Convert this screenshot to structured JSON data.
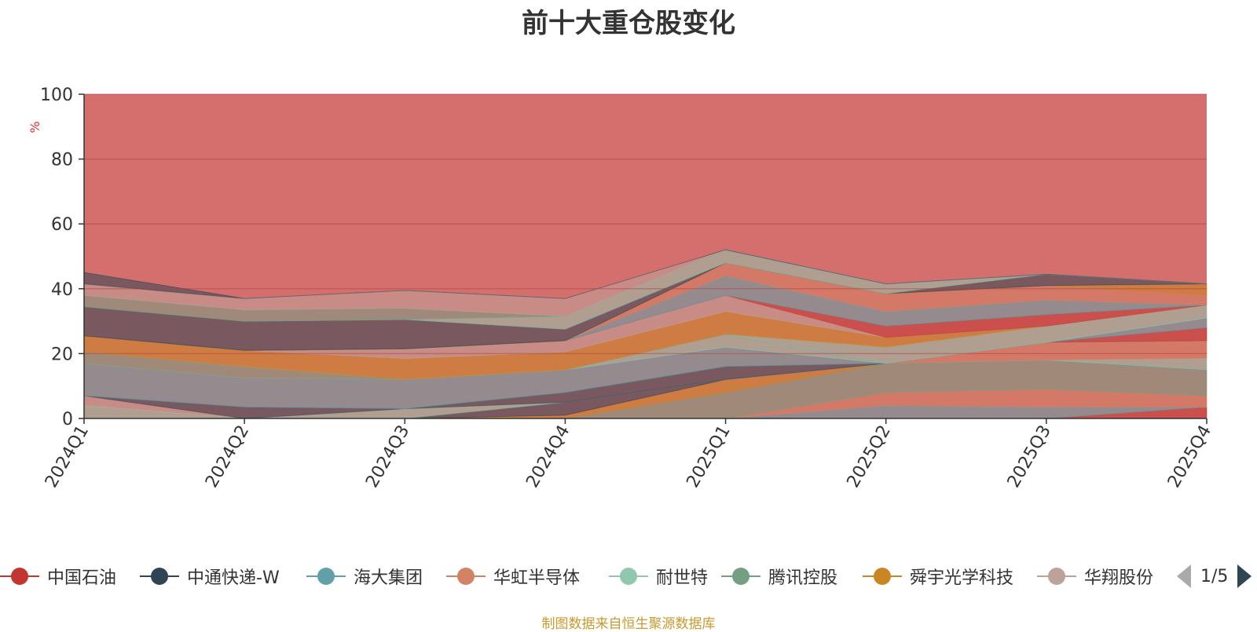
{
  "title": "前十大重仓股变化",
  "source_note": "制图数据来自恒生聚源数据库",
  "legend": {
    "items": [
      {
        "name": "中国石油",
        "color": "#c23531"
      },
      {
        "name": "中通快递-W",
        "color": "#2f4554"
      },
      {
        "name": "海大集团",
        "color": "#61a0a8"
      },
      {
        "name": "华虹半导体",
        "color": "#d48265"
      },
      {
        "name": "耐世特",
        "color": "#91c7ae"
      },
      {
        "name": "腾讯控股",
        "color": "#749f83"
      },
      {
        "name": "舜宇光学科技",
        "color": "#ca8622"
      },
      {
        "name": "华翔股份",
        "color": "#bda29a"
      }
    ],
    "page": "1/5"
  },
  "chart_data": {
    "type": "area",
    "stacked": true,
    "categories": [
      "2024Q1",
      "2024Q2",
      "2024Q3",
      "2024Q4",
      "2025Q1",
      "2025Q2",
      "2025Q3",
      "2025Q4"
    ],
    "ylabel": "%",
    "ylim": [
      0,
      100
    ],
    "yticks": [
      0,
      20,
      40,
      60,
      80,
      100
    ],
    "grid": true,
    "background_series_color": "#d46f6d",
    "series": [
      {
        "name": "中国石油",
        "color": "#c23531",
        "values": [
          0,
          0,
          0,
          0,
          0,
          0,
          0,
          3.5
        ]
      },
      {
        "name": "海大集团",
        "color": "#61a0a8",
        "values": [
          0,
          0,
          0,
          0,
          0,
          4,
          3.5,
          0
        ]
      },
      {
        "name": "华虹半导体",
        "color": "#d48265",
        "values": [
          0,
          0,
          0,
          0,
          0,
          4,
          5.5,
          3.5
        ]
      },
      {
        "name": "腾讯控股",
        "color": "#749f83",
        "values": [
          0,
          0,
          0,
          0,
          8,
          9,
          9,
          8
        ]
      },
      {
        "name": "舜宇光学科技",
        "color": "#ca8622",
        "values": [
          0,
          0,
          0,
          1,
          4,
          0,
          0,
          0
        ]
      },
      {
        "name": "中通快递-W",
        "color": "#2f4554",
        "values": [
          0,
          0,
          0,
          4,
          0,
          0,
          0,
          0
        ]
      },
      {
        "name": "耐世特",
        "color": "#91c7ae",
        "values": [
          4,
          0,
          3,
          0,
          0,
          0,
          0,
          0
        ]
      },
      {
        "name": "华翔股份",
        "color": "#bda29a",
        "values": [
          3,
          0,
          0,
          0,
          0,
          0,
          0,
          0
        ]
      },
      {
        "name": "中通快递-W",
        "color": "#2f4554",
        "values": [
          0,
          3.5,
          0,
          3,
          4,
          0,
          0,
          0
        ]
      },
      {
        "name": "海大集团",
        "color": "#61a0a8",
        "values": [
          10,
          9,
          9,
          7,
          6,
          0,
          0,
          0
        ]
      },
      {
        "name": "耐世特",
        "color": "#91c7ae",
        "values": [
          0,
          0,
          0,
          0,
          4,
          0,
          0,
          3.5
        ]
      },
      {
        "name": "华虹半导体",
        "color": "#d48265",
        "values": [
          0,
          0,
          0,
          0,
          0,
          0,
          5.5,
          5.5
        ]
      },
      {
        "name": "腾讯控股",
        "color": "#749f83",
        "values": [
          3.5,
          3.5,
          0,
          0,
          0,
          0,
          0,
          0
        ]
      },
      {
        "name": "中国石油",
        "color": "#c23531",
        "values": [
          0,
          0,
          0,
          0,
          0,
          0,
          0,
          4
        ]
      },
      {
        "name": "海大集团",
        "color": "#61a0a8",
        "values": [
          0,
          0,
          0,
          0,
          0,
          0,
          0,
          3
        ]
      },
      {
        "name": "耐世特",
        "color": "#91c7ae",
        "values": [
          0,
          0,
          0,
          0,
          0,
          5,
          5,
          4
        ]
      },
      {
        "name": "舜宇光学科技",
        "color": "#ca8622",
        "values": [
          5,
          5,
          6.5,
          5.5,
          7,
          3,
          0,
          0
        ]
      },
      {
        "name": "华翔股份",
        "color": "#bda29a",
        "values": [
          0,
          0,
          3,
          3.5,
          5,
          0,
          0,
          0
        ]
      },
      {
        "name": "中国石油",
        "color": "#c23531",
        "values": [
          0,
          0,
          0,
          0,
          0,
          3.5,
          3.5,
          0
        ]
      },
      {
        "name": "海大集团",
        "color": "#61a0a8",
        "values": [
          0,
          0,
          0,
          0,
          6,
          4.5,
          4.5,
          0
        ]
      },
      {
        "name": "华虹半导体",
        "color": "#d48265",
        "values": [
          0,
          0,
          0,
          0,
          4,
          5.5,
          4.5,
          3
        ]
      },
      {
        "name": "舜宇光学科技",
        "color": "#ca8622",
        "values": [
          0,
          0,
          0,
          0,
          0,
          0,
          0,
          3.5
        ]
      },
      {
        "name": "中通快递-W",
        "color": "#2f4554",
        "values": [
          9,
          9,
          9,
          3.5,
          0,
          0,
          3.5,
          0
        ]
      },
      {
        "name": "耐世特",
        "color": "#91c7ae",
        "values": [
          0,
          0,
          0,
          4,
          4,
          3,
          0,
          0
        ]
      },
      {
        "name": "腾讯控股",
        "color": "#749f83",
        "values": [
          3.5,
          3.5,
          3.5,
          0,
          0,
          0,
          0,
          0
        ]
      },
      {
        "name": "华翔股份",
        "color": "#bda29a",
        "values": [
          3.5,
          3.5,
          5.5,
          5.5,
          0,
          0,
          0,
          0
        ]
      },
      {
        "name": "中通快递-W",
        "color": "#2f4554",
        "values": [
          3.5,
          0,
          0,
          0,
          0,
          0,
          0,
          0
        ]
      }
    ]
  }
}
